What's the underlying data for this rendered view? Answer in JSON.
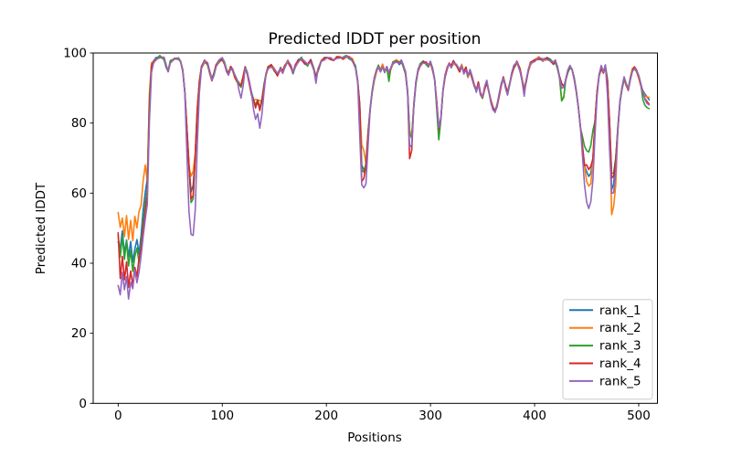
{
  "figure": {
    "background": "#ffffff"
  },
  "chart_data": {
    "type": "line",
    "title": "Predicted lDDT per position",
    "xlabel": "Positions",
    "ylabel": "Predicted lDDT",
    "xlim": [
      -24,
      518
    ],
    "ylim": [
      0,
      100
    ],
    "xticks": [
      0,
      100,
      200,
      300,
      400,
      500
    ],
    "yticks": [
      0,
      20,
      40,
      60,
      80,
      100
    ],
    "grid": false,
    "axis_color": "#000000",
    "legend": {
      "position": "lower right",
      "border_color": "#cccccc",
      "background": "#ffffff"
    },
    "base_points": [
      [
        0,
        46
      ],
      [
        2,
        42
      ],
      [
        4,
        48
      ],
      [
        6,
        41
      ],
      [
        8,
        46
      ],
      [
        10,
        38
      ],
      [
        12,
        43
      ],
      [
        14,
        37
      ],
      [
        16,
        42
      ],
      [
        18,
        44
      ],
      [
        20,
        40
      ],
      [
        22,
        46
      ],
      [
        24,
        52
      ],
      [
        26,
        57
      ],
      [
        28,
        62
      ],
      [
        30,
        83
      ],
      [
        32,
        95
      ],
      [
        34,
        97.5
      ],
      [
        36,
        98.3
      ],
      [
        40,
        99
      ],
      [
        44,
        98.4
      ],
      [
        46,
        96.2
      ],
      [
        48,
        94.6
      ],
      [
        50,
        97.4
      ],
      [
        54,
        98.6
      ],
      [
        58,
        98.2
      ],
      [
        60,
        97.2
      ],
      [
        62,
        95
      ],
      [
        64,
        89
      ],
      [
        66,
        79
      ],
      [
        68,
        68
      ],
      [
        70,
        59
      ],
      [
        72,
        60
      ],
      [
        74,
        71
      ],
      [
        76,
        84
      ],
      [
        78,
        92
      ],
      [
        80,
        96
      ],
      [
        83,
        97.6
      ],
      [
        86,
        96.8
      ],
      [
        88,
        94.5
      ],
      [
        90,
        92.4
      ],
      [
        92,
        94
      ],
      [
        94,
        96.3
      ],
      [
        97,
        97.8
      ],
      [
        100,
        98.3
      ],
      [
        102,
        97.2
      ],
      [
        104,
        95
      ],
      [
        106,
        94.1
      ],
      [
        108,
        95.8
      ],
      [
        110,
        95.2
      ],
      [
        112,
        93.4
      ],
      [
        114,
        92.2
      ],
      [
        116,
        91.2
      ],
      [
        118,
        90.6
      ],
      [
        120,
        93
      ],
      [
        122,
        95.8
      ],
      [
        124,
        94.2
      ],
      [
        126,
        91.5
      ],
      [
        128,
        88.5
      ],
      [
        130,
        86.6
      ],
      [
        132,
        85.1
      ],
      [
        134,
        86.2
      ],
      [
        136,
        84.3
      ],
      [
        138,
        86.6
      ],
      [
        140,
        90.5
      ],
      [
        142,
        94
      ],
      [
        144,
        95.8
      ],
      [
        147,
        96.4
      ],
      [
        150,
        95.2
      ],
      [
        153,
        93.8
      ],
      [
        156,
        95.6
      ],
      [
        158,
        94.6
      ],
      [
        160,
        96.2
      ],
      [
        163,
        97.6
      ],
      [
        166,
        96
      ],
      [
        168,
        94.4
      ],
      [
        170,
        96.2
      ],
      [
        173,
        97.8
      ],
      [
        176,
        98.4
      ],
      [
        179,
        97.2
      ],
      [
        182,
        96.6
      ],
      [
        185,
        97.8
      ],
      [
        188,
        95.4
      ],
      [
        190,
        93.6
      ],
      [
        192,
        95.2
      ],
      [
        195,
        97.4
      ],
      [
        198,
        98.4
      ],
      [
        201,
        99
      ],
      [
        204,
        98.4
      ],
      [
        207,
        97.6
      ],
      [
        210,
        98.6
      ],
      [
        213,
        99
      ],
      [
        216,
        98.6
      ],
      [
        219,
        99
      ],
      [
        222,
        98.6
      ],
      [
        225,
        98
      ],
      [
        228,
        96
      ],
      [
        230,
        92
      ],
      [
        232,
        85
      ],
      [
        234,
        74
      ],
      [
        236,
        66
      ],
      [
        238,
        68
      ],
      [
        240,
        77
      ],
      [
        242,
        84
      ],
      [
        244,
        89
      ],
      [
        246,
        92.5
      ],
      [
        248,
        94.8
      ],
      [
        250,
        96.2
      ],
      [
        252,
        95
      ],
      [
        254,
        96.4
      ],
      [
        256,
        94.6
      ],
      [
        258,
        95.8
      ],
      [
        260,
        94
      ],
      [
        262,
        95.8
      ],
      [
        264,
        97.2
      ],
      [
        267,
        97.8
      ],
      [
        270,
        97
      ],
      [
        272,
        97.6
      ],
      [
        274,
        96.2
      ],
      [
        276,
        94.4
      ],
      [
        278,
        89
      ],
      [
        280,
        77
      ],
      [
        282,
        76
      ],
      [
        284,
        85
      ],
      [
        286,
        91.5
      ],
      [
        288,
        95
      ],
      [
        290,
        96.6
      ],
      [
        293,
        97.6
      ],
      [
        296,
        97
      ],
      [
        298,
        96.2
      ],
      [
        300,
        97.2
      ],
      [
        302,
        95.4
      ],
      [
        304,
        92.6
      ],
      [
        306,
        86
      ],
      [
        308,
        77.5
      ],
      [
        310,
        81
      ],
      [
        312,
        89
      ],
      [
        314,
        93.4
      ],
      [
        316,
        95.8
      ],
      [
        318,
        97.2
      ],
      [
        320,
        96.2
      ],
      [
        322,
        97.4
      ],
      [
        325,
        96.4
      ],
      [
        328,
        95
      ],
      [
        330,
        96.4
      ],
      [
        332,
        94.4
      ],
      [
        334,
        95.6
      ],
      [
        336,
        93.4
      ],
      [
        338,
        95
      ],
      [
        340,
        93
      ],
      [
        342,
        90.8
      ],
      [
        344,
        89
      ],
      [
        346,
        91.4
      ],
      [
        348,
        88.4
      ],
      [
        350,
        87.4
      ],
      [
        352,
        90
      ],
      [
        354,
        91.8
      ],
      [
        356,
        89
      ],
      [
        358,
        86.2
      ],
      [
        360,
        84.2
      ],
      [
        362,
        83.4
      ],
      [
        364,
        85
      ],
      [
        366,
        88
      ],
      [
        368,
        91
      ],
      [
        370,
        93
      ],
      [
        372,
        90.4
      ],
      [
        374,
        88.4
      ],
      [
        376,
        91
      ],
      [
        378,
        94
      ],
      [
        380,
        96
      ],
      [
        383,
        97.4
      ],
      [
        386,
        95.2
      ],
      [
        388,
        92.2
      ],
      [
        390,
        89.6
      ],
      [
        392,
        92
      ],
      [
        394,
        95
      ],
      [
        396,
        97
      ],
      [
        400,
        98
      ],
      [
        404,
        98.5
      ],
      [
        408,
        98
      ],
      [
        412,
        98.5
      ],
      [
        415,
        98
      ],
      [
        418,
        97
      ],
      [
        420,
        97.6
      ],
      [
        422,
        95.8
      ],
      [
        424,
        93
      ],
      [
        426,
        89.8
      ],
      [
        428,
        90.6
      ],
      [
        430,
        92.6
      ],
      [
        432,
        94.8
      ],
      [
        434,
        96
      ],
      [
        436,
        95
      ],
      [
        438,
        92.6
      ],
      [
        440,
        89.4
      ],
      [
        442,
        85
      ],
      [
        444,
        79
      ],
      [
        446,
        73
      ],
      [
        448,
        67.5
      ],
      [
        450,
        63.5
      ],
      [
        452,
        62
      ],
      [
        454,
        64
      ],
      [
        456,
        70
      ],
      [
        458,
        80
      ],
      [
        460,
        88.6
      ],
      [
        462,
        93.6
      ],
      [
        464,
        95.8
      ],
      [
        466,
        94.6
      ],
      [
        468,
        96.2
      ],
      [
        470,
        92
      ],
      [
        472,
        80
      ],
      [
        474,
        63
      ],
      [
        476,
        64
      ],
      [
        478,
        70
      ],
      [
        480,
        78.5
      ],
      [
        482,
        86
      ],
      [
        484,
        90
      ],
      [
        486,
        92.8
      ],
      [
        488,
        91
      ],
      [
        490,
        89.6
      ],
      [
        492,
        92.8
      ],
      [
        494,
        95.2
      ],
      [
        496,
        95.8
      ],
      [
        498,
        94.8
      ],
      [
        500,
        93.2
      ],
      [
        502,
        91
      ],
      [
        504,
        89
      ],
      [
        506,
        87.2
      ],
      [
        508,
        86
      ],
      [
        510,
        85.2
      ]
    ],
    "series": [
      {
        "name": "rank_1",
        "color": "#1f77b4",
        "jitter": {
          "amp": 0.35,
          "freq": 0.55,
          "phase": 0.3
        },
        "overrides": {
          "0": 46,
          "2": 44,
          "4": 49,
          "6": 43,
          "8": 47,
          "10": 42,
          "12": 46,
          "14": 40,
          "16": 44,
          "18": 47,
          "20": 43,
          "22": 48,
          "24": 55,
          "26": 60,
          "28": 64,
          "30": 85,
          "32": 96,
          "70": 60,
          "72": 62,
          "234": 68,
          "236": 67,
          "280": 78,
          "308": 79,
          "426": 91,
          "450": 66,
          "452": 65,
          "454": 66,
          "474": 61,
          "476": 63,
          "506": 88,
          "508": 87.5,
          "510": 87
        }
      },
      {
        "name": "rank_2",
        "color": "#ff7f0e",
        "jitter": {
          "amp": 0.45,
          "freq": 0.42,
          "phase": 1.7
        },
        "overrides": {
          "0": 54,
          "2": 50,
          "4": 53,
          "6": 48,
          "8": 54,
          "10": 47,
          "12": 52,
          "14": 46,
          "16": 53,
          "18": 50,
          "20": 55,
          "22": 57,
          "24": 64,
          "26": 68,
          "28": 63,
          "30": 88,
          "32": 97,
          "70": 65,
          "72": 66,
          "132": 86.5,
          "136": 86,
          "234": 74,
          "236": 72,
          "280": 78,
          "308": 76,
          "426": 87,
          "428": 88,
          "450": 63,
          "452": 62,
          "454": 63,
          "474": 54,
          "476": 56,
          "478": 62,
          "506": 87.5,
          "508": 87,
          "510": 87
        }
      },
      {
        "name": "rank_3",
        "color": "#2ca02c",
        "jitter": {
          "amp": 0.4,
          "freq": 0.6,
          "phase": 2.9
        },
        "overrides": {
          "0": 48,
          "6": 41,
          "10": 39,
          "12": 44,
          "14": 38,
          "24": 52,
          "26": 57,
          "28": 61,
          "30": 86,
          "32": 96.5,
          "70": 57,
          "72": 58,
          "234": 67,
          "236": 66,
          "260": 91.5,
          "280": 76,
          "306": 84,
          "308": 75.5,
          "426": 86,
          "428": 87,
          "446": 76,
          "448": 73,
          "450": 72,
          "452": 72,
          "454": 74,
          "456": 78,
          "474": 66,
          "476": 66,
          "504": 87,
          "506": 85.5,
          "508": 84.5,
          "510": 83.8
        }
      },
      {
        "name": "rank_4",
        "color": "#d62728",
        "jitter": {
          "amp": 0.38,
          "freq": 0.5,
          "phase": 4.1
        },
        "overrides": {
          "0": 49,
          "2": 36,
          "4": 42,
          "6": 35,
          "8": 40,
          "10": 33,
          "12": 38,
          "14": 34,
          "16": 39,
          "18": 36,
          "20": 41,
          "22": 44,
          "24": 50,
          "26": 55,
          "28": 60,
          "30": 84,
          "32": 96,
          "70": 58,
          "72": 59,
          "132": 84,
          "136": 83.5,
          "234": 63,
          "236": 64,
          "280": 70,
          "282": 72,
          "308": 78,
          "426": 91.5,
          "450": 68,
          "452": 67,
          "454": 68,
          "474": 64,
          "476": 65,
          "510": 85
        }
      },
      {
        "name": "rank_5",
        "color": "#9467bd",
        "jitter": {
          "amp": 0.45,
          "freq": 0.47,
          "phase": 5.3
        },
        "overrides": {
          "0": 34,
          "2": 31,
          "4": 37,
          "6": 32,
          "8": 36,
          "10": 30,
          "12": 35,
          "14": 33,
          "16": 38,
          "18": 34,
          "20": 37,
          "22": 42,
          "24": 48,
          "26": 53,
          "28": 57,
          "30": 80,
          "32": 94,
          "34": 97,
          "66": 72,
          "68": 55,
          "70": 48,
          "72": 47.5,
          "74": 55,
          "76": 74,
          "78": 89,
          "116": 89.5,
          "118": 87.5,
          "120": 91,
          "130": 84,
          "132": 81.5,
          "134": 83,
          "136": 78.5,
          "138": 82,
          "140": 88,
          "190": 91.2,
          "232": 76,
          "234": 62,
          "236": 61.5,
          "238": 63,
          "240": 74,
          "280": 73.5,
          "282": 74,
          "306": 85,
          "308": 79,
          "390": 87.6,
          "426": 90.4,
          "446": 70,
          "448": 62,
          "450": 57.5,
          "452": 56,
          "454": 58,
          "456": 64,
          "458": 76,
          "460": 87,
          "464": 96.6,
          "466": 95,
          "468": 97,
          "470": 88,
          "472": 72,
          "474": 59.5,
          "476": 60,
          "478": 66
        }
      }
    ]
  }
}
